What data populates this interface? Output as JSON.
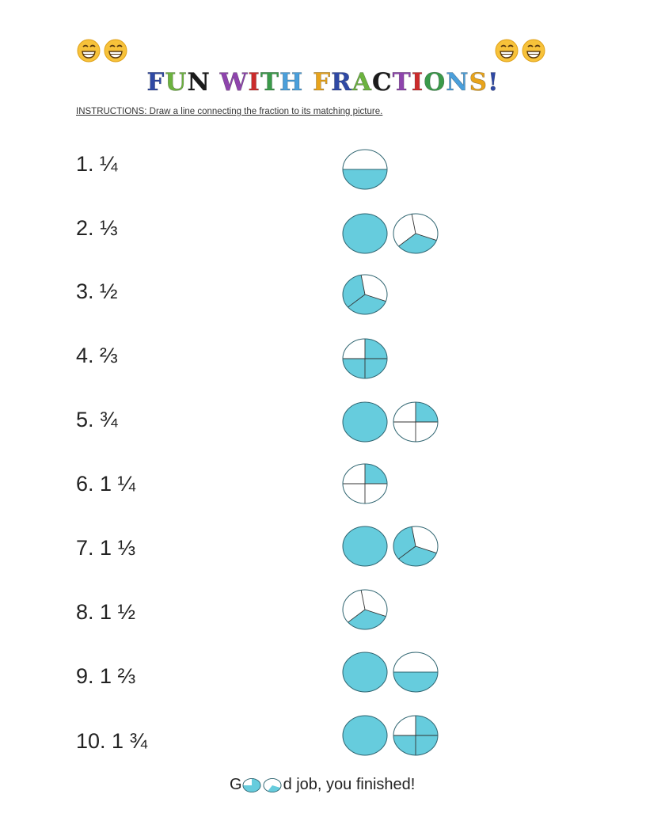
{
  "colors": {
    "fill": "#66CCDD",
    "stroke": "#2E6470",
    "title_palette": [
      "#2F49A5",
      "#6CB33F",
      "#1B1B1B",
      "#8E44AD",
      "#CC2B2B",
      "#3A9A4A",
      "#4A9FDB",
      "#E8A41C"
    ]
  },
  "header": {
    "emoji_icon": "grinning-face-icon",
    "title": "FUN WITH FRACTIONS!",
    "instructions": "INSTRUCTIONS:  Draw a line connecting the fraction to its matching picture."
  },
  "problems": [
    {
      "label": "1. ¼"
    },
    {
      "label": "2. ⅓"
    },
    {
      "label": "3. ½"
    },
    {
      "label": "4. ⅔"
    },
    {
      "label": "5. ¾"
    },
    {
      "label": "6. 1 ¼"
    },
    {
      "label": "7. 1 ⅓"
    },
    {
      "label": "8. 1 ½"
    },
    {
      "label": "9. 1 ⅔"
    },
    {
      "label": "10. 1 ¾"
    }
  ],
  "pictures": [
    {
      "circles": [
        {
          "type": "halves",
          "shaded": 1
        }
      ]
    },
    {
      "circles": [
        {
          "type": "full"
        },
        {
          "type": "thirds",
          "shaded": 1
        }
      ]
    },
    {
      "circles": [
        {
          "type": "thirds",
          "shaded": 2
        }
      ]
    },
    {
      "circles": [
        {
          "type": "quarters",
          "shaded": 3
        }
      ]
    },
    {
      "circles": [
        {
          "type": "full"
        },
        {
          "type": "quarters",
          "shaded": 1
        }
      ]
    },
    {
      "circles": [
        {
          "type": "quarters",
          "shaded": 1
        }
      ]
    },
    {
      "circles": [
        {
          "type": "full"
        },
        {
          "type": "thirds",
          "shaded": 2
        }
      ]
    },
    {
      "circles": [
        {
          "type": "thirds",
          "shaded": 1
        }
      ]
    },
    {
      "circles": [
        {
          "type": "full"
        },
        {
          "type": "halves",
          "shaded": 1
        }
      ]
    },
    {
      "circles": [
        {
          "type": "full"
        },
        {
          "type": "quarters",
          "shaded": 3
        }
      ]
    }
  ],
  "footer": {
    "prefix": "G",
    "suffix": "d job, you finished!",
    "o_icons": [
      "quarter-pie-icon",
      "third-pie-icon"
    ]
  }
}
